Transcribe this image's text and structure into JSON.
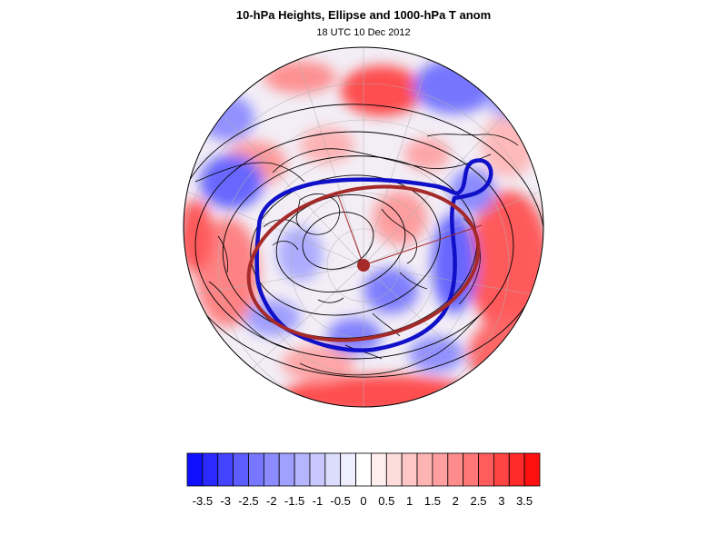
{
  "header": {
    "title": "10-hPa Heights, Ellipse and 1000-hPa T anom",
    "subtitle": "18 UTC 10 Dec 2012"
  },
  "colors": {
    "vortex_contour": "#1010c8",
    "ellipse": "#a52a2a",
    "height_contours": "#000000",
    "coastline": "#000000"
  },
  "colorbar": {
    "colors": [
      "#1010ff",
      "#2a2aff",
      "#4444ff",
      "#5d5dff",
      "#7777ff",
      "#8c8cff",
      "#a0a0ff",
      "#b4b4ff",
      "#c8c8ff",
      "#dcdcff",
      "#eeeeff",
      "#ffffff",
      "#ffeeee",
      "#ffdcdc",
      "#ffc8c8",
      "#ffb4b4",
      "#ffa0a0",
      "#ff8c8c",
      "#ff7777",
      "#ff5d5d",
      "#ff4444",
      "#ff2a2a",
      "#ff1010"
    ],
    "tick_labels": [
      "-3.5",
      "-3",
      "-2.5",
      "-2",
      "-1.5",
      "-1",
      "-0.5",
      "0",
      "0.5",
      "1",
      "1.5",
      "2",
      "2.5",
      "3",
      "3.5"
    ]
  }
}
